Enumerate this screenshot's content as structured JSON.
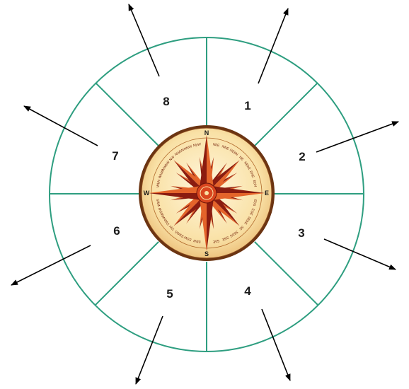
{
  "sectors": [
    {
      "label": "1"
    },
    {
      "label": "2"
    },
    {
      "label": "3"
    },
    {
      "label": "4"
    },
    {
      "label": "5"
    },
    {
      "label": "6"
    },
    {
      "label": "7"
    },
    {
      "label": "8"
    }
  ],
  "compass": {
    "north": "N",
    "east": "E",
    "south": "S",
    "west": "W",
    "minor": [
      "NbE",
      "NNE",
      "NEbN",
      "NE",
      "NEbE",
      "ENE",
      "EbN",
      "EbS",
      "ESE",
      "SEbE",
      "SE",
      "SEbS",
      "SSE",
      "SbE",
      "SbW",
      "SSW",
      "SWbS",
      "SW",
      "SWbW",
      "WSW",
      "WbS",
      "WbN",
      "WNW",
      "NWbW",
      "NW",
      "NWbN",
      "NNW",
      "NbW"
    ]
  },
  "colors": {
    "ring_line": "#2e9e80",
    "compass_face": "#f9e7b4",
    "compass_rim": "#6b3412",
    "star_dark": "#8a1c10",
    "star_light": "#e4642a",
    "arrow": "#000000"
  }
}
